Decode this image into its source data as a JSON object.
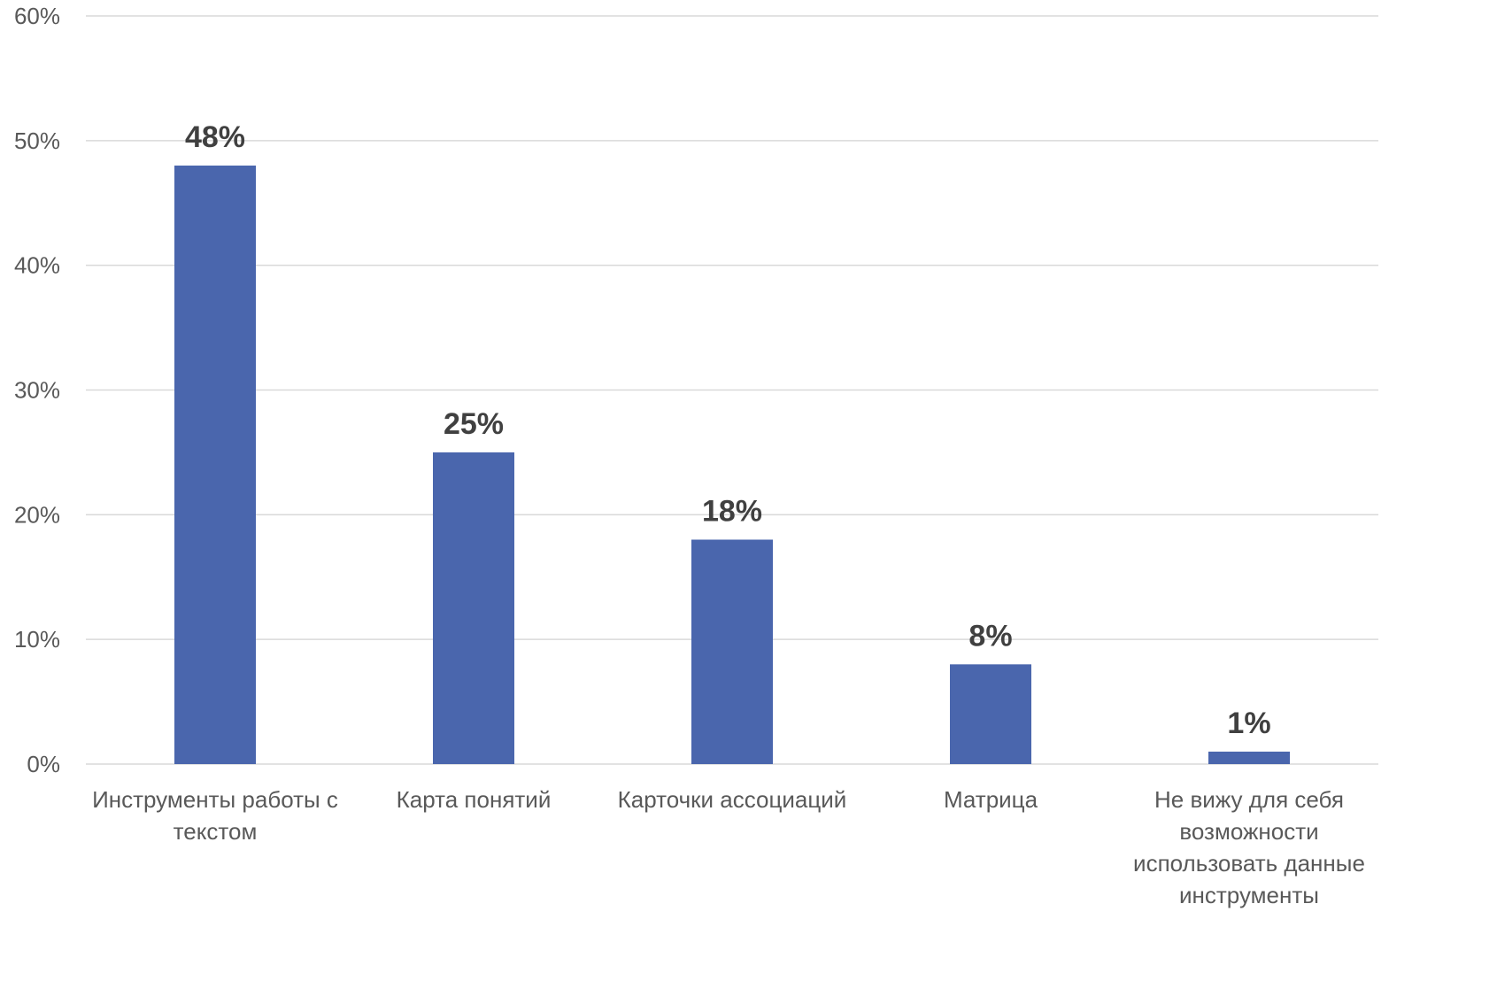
{
  "chart_data": {
    "type": "bar",
    "title": "",
    "xlabel": "",
    "ylabel": "",
    "categories": [
      [
        "Инструменты работы с",
        "текстом"
      ],
      [
        "Карта понятий"
      ],
      [
        "Карточки ассоциаций"
      ],
      [
        "Матрица"
      ],
      [
        "Не вижу для себя",
        "возможности",
        "использовать данные",
        "инструменты"
      ]
    ],
    "values": [
      48,
      25,
      18,
      8,
      1
    ],
    "data_labels": [
      "48%",
      "25%",
      "18%",
      "8%",
      "1%"
    ],
    "ylim": [
      0,
      60
    ],
    "yticks": [
      0,
      10,
      20,
      30,
      40,
      50,
      60
    ],
    "ytick_labels": [
      "0%",
      "10%",
      "20%",
      "30%",
      "40%",
      "50%",
      "60%"
    ],
    "grid": true,
    "legend": "none",
    "colors": {
      "bar": "#4a66ad",
      "grid": "#d9d9d9",
      "tick_text": "#595959",
      "data_label": "#404040"
    }
  }
}
